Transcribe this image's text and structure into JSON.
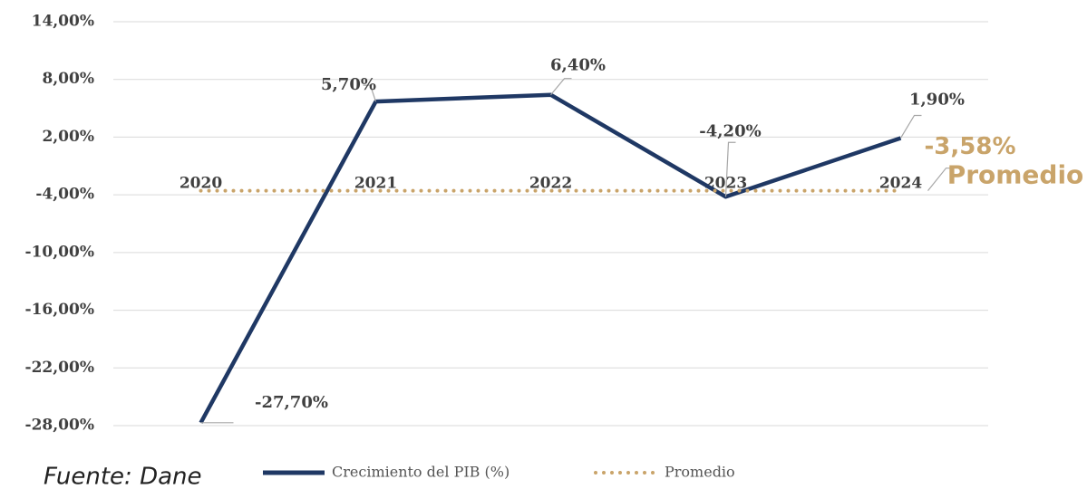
{
  "chart_data": {
    "type": "line",
    "categories": [
      "2020",
      "2021",
      "2022",
      "2023",
      "2024"
    ],
    "series": [
      {
        "name": "Crecimiento del PIB (%)",
        "color": "#1f3864",
        "values": [
          -27.7,
          5.7,
          6.4,
          -4.2,
          1.9
        ],
        "value_labels": [
          "-27,70%",
          "5,70%",
          "6,40%",
          "-4,20%",
          "1,90%"
        ]
      },
      {
        "name": "Promedio",
        "color": "#c9a46a",
        "dotted": true,
        "values": [
          -3.58,
          -3.58,
          -3.58,
          -3.58,
          -3.58
        ]
      }
    ],
    "average_annotation": {
      "value": -3.58,
      "label": "-3,58%",
      "text": "Promedio"
    },
    "source": "Fuente: Dane",
    "ylim": [
      -28,
      14
    ],
    "yticks": [
      {
        "value": 14,
        "label": "14,00%"
      },
      {
        "value": 8,
        "label": "8,00%"
      },
      {
        "value": 2,
        "label": "2,00%"
      },
      {
        "value": -4,
        "label": "-4,00%"
      },
      {
        "value": -10,
        "label": "-10,00%"
      },
      {
        "value": -16,
        "label": "-16,00%"
      },
      {
        "value": -22,
        "label": "-22,00%"
      },
      {
        "value": -28,
        "label": "-28,00%"
      }
    ],
    "grid": true
  }
}
